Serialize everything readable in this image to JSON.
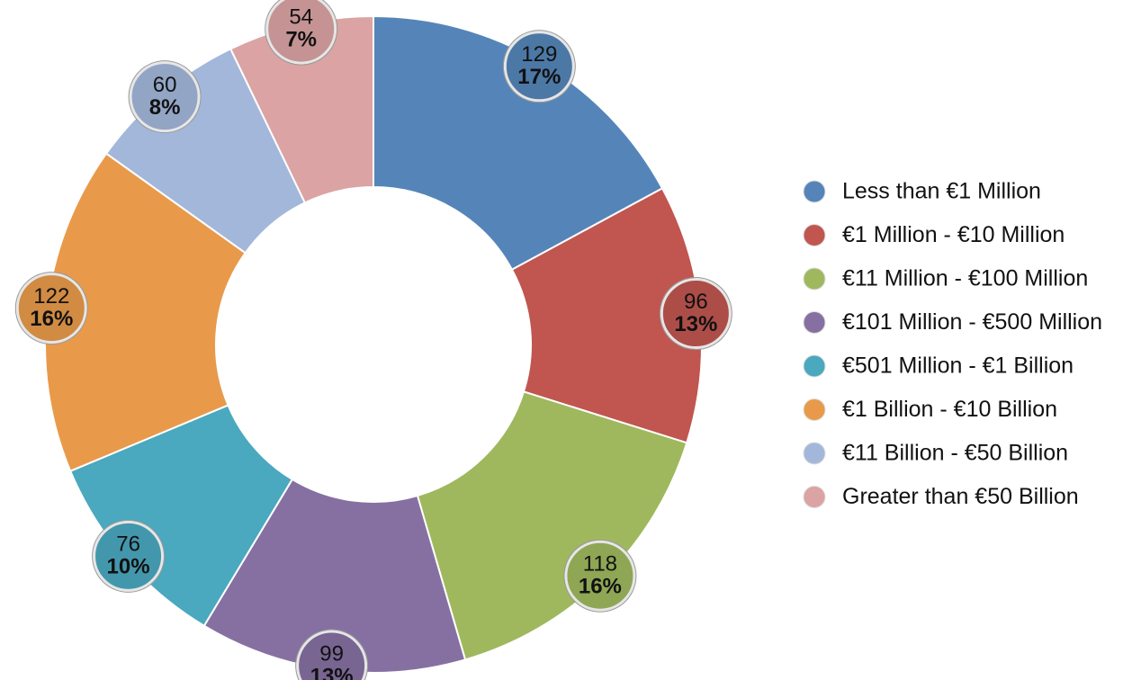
{
  "chart_data": {
    "type": "donut",
    "categories": [
      "Less than €1 Million",
      "€1 Million - €10 Million",
      "€11 Million - €100 Million",
      "€101 Million - €500 Million",
      "€501 Million - €1 Billion",
      "€1 Billion - €10 Billion",
      "€11 Billion - €50 Billion",
      "Greater than €50 Billion"
    ],
    "values": [
      129,
      96,
      118,
      99,
      76,
      122,
      60,
      54
    ],
    "percent_labels": [
      "17%",
      "13%",
      "16%",
      "13%",
      "10%",
      "16%",
      "8%",
      "7%"
    ],
    "colors": [
      "#5585b8",
      "#c0564f",
      "#9fb85e",
      "#8670a2",
      "#4aa8bf",
      "#e89a4a",
      "#a3b7da",
      "#dba3a3"
    ],
    "legend": "right"
  }
}
